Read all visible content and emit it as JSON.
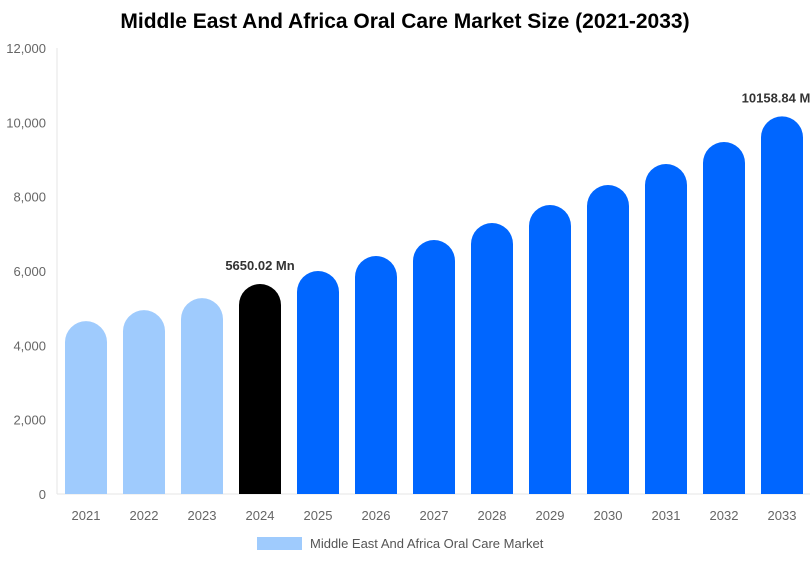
{
  "chart_data": {
    "type": "bar",
    "title": "Middle East And Africa Oral Care Market Size (2021-2033)",
    "categories": [
      "2021",
      "2022",
      "2023",
      "2024",
      "2025",
      "2026",
      "2027",
      "2028",
      "2029",
      "2030",
      "2031",
      "2032",
      "2033"
    ],
    "series": [
      {
        "name": "Middle East And Africa Oral Care Market",
        "values": [
          4650,
          4946,
          5270,
          5650.02,
          6000,
          6403,
          6834,
          7291,
          7775,
          8313,
          8878,
          9470,
          10158.84
        ]
      }
    ],
    "ylim": [
      0,
      12000
    ],
    "yticks": [
      "0",
      "2,000",
      "4,000",
      "6,000",
      "8,000",
      "10,000",
      "12,000"
    ],
    "data_labels": {
      "3": "5650.02 Mn",
      "12": "10158.84 M"
    },
    "colors": {
      "historical": "#9fcbfd",
      "base_year": "#000000",
      "forecast": "#0066ff"
    },
    "grid": false,
    "legend_position": "bottom"
  }
}
